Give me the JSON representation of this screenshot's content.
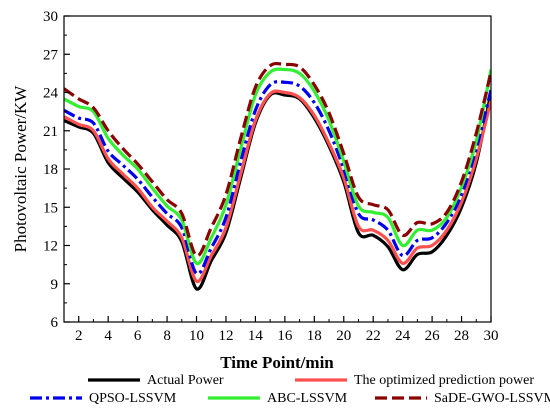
{
  "chart_data": {
    "type": "line",
    "xlabel": "Time Point/min",
    "ylabel": "Photovoltaic Power/KW",
    "xlim": [
      1,
      30
    ],
    "ylim": [
      6,
      30
    ],
    "xticks": [
      2,
      4,
      6,
      8,
      10,
      12,
      14,
      16,
      18,
      20,
      22,
      24,
      26,
      28,
      30
    ],
    "yticks": [
      6,
      9,
      12,
      15,
      18,
      21,
      24,
      27,
      30
    ],
    "grid": false,
    "legend_position": "bottom",
    "x": [
      1,
      2,
      3,
      4,
      5,
      6,
      7,
      8,
      9,
      10,
      11,
      12,
      13,
      14,
      15,
      16,
      17,
      18,
      19,
      20,
      21,
      22,
      23,
      24,
      25,
      26,
      27,
      28,
      29,
      30
    ],
    "series": [
      {
        "name": "Actual Power",
        "color": "#000000",
        "dash": "solid",
        "values": [
          21.8,
          21.3,
          20.8,
          18.5,
          17.3,
          16.2,
          14.8,
          13.6,
          12.3,
          8.6,
          10.8,
          13.0,
          17.3,
          21.6,
          23.8,
          23.8,
          23.5,
          22.0,
          19.8,
          17.0,
          13.0,
          12.8,
          11.9,
          10.1,
          11.3,
          11.5,
          12.8,
          15.0,
          18.5,
          24.0
        ]
      },
      {
        "name": "The optimized prediction power",
        "color": "#ff5050",
        "dash": "solid",
        "values": [
          22.1,
          21.5,
          21.0,
          18.8,
          17.6,
          16.5,
          15.0,
          13.9,
          12.6,
          9.2,
          11.2,
          13.4,
          17.6,
          21.8,
          23.9,
          24.0,
          23.6,
          22.2,
          20.0,
          17.3,
          13.5,
          13.2,
          12.4,
          10.6,
          11.8,
          12.0,
          13.2,
          15.4,
          18.8,
          23.4
        ]
      },
      {
        "name": "QPSO-LSSVM",
        "color": "#0000ee",
        "dash": "dashdot",
        "values": [
          22.6,
          22.0,
          21.6,
          19.4,
          18.3,
          17.2,
          15.8,
          14.5,
          13.4,
          9.8,
          11.8,
          14.2,
          18.6,
          22.6,
          24.6,
          24.8,
          24.5,
          23.2,
          21.0,
          18.0,
          14.5,
          14.0,
          13.2,
          11.2,
          12.4,
          12.6,
          13.8,
          16.0,
          19.6,
          24.2
        ]
      },
      {
        "name": "ABC-LSSVM",
        "color": "#33ee33",
        "dash": "solid",
        "values": [
          23.5,
          22.9,
          22.5,
          20.4,
          19.1,
          18.0,
          16.5,
          15.1,
          14.0,
          10.6,
          12.6,
          15.2,
          19.6,
          23.8,
          25.6,
          25.8,
          25.5,
          24.1,
          21.8,
          18.6,
          15.1,
          14.6,
          14.2,
          12.0,
          13.2,
          13.2,
          14.2,
          16.6,
          20.2,
          25.8
        ]
      },
      {
        "name": "SaDE-GWO-LSSVM",
        "color": "#8b0000",
        "dash": "dash",
        "values": [
          24.3,
          23.5,
          22.8,
          21.0,
          19.6,
          18.4,
          17.0,
          15.6,
          14.5,
          11.2,
          13.4,
          16.0,
          20.4,
          24.4,
          26.1,
          26.2,
          26.0,
          24.6,
          22.4,
          19.2,
          15.8,
          15.2,
          14.8,
          12.8,
          13.8,
          13.7,
          14.6,
          17.0,
          20.8,
          25.6
        ]
      }
    ]
  }
}
